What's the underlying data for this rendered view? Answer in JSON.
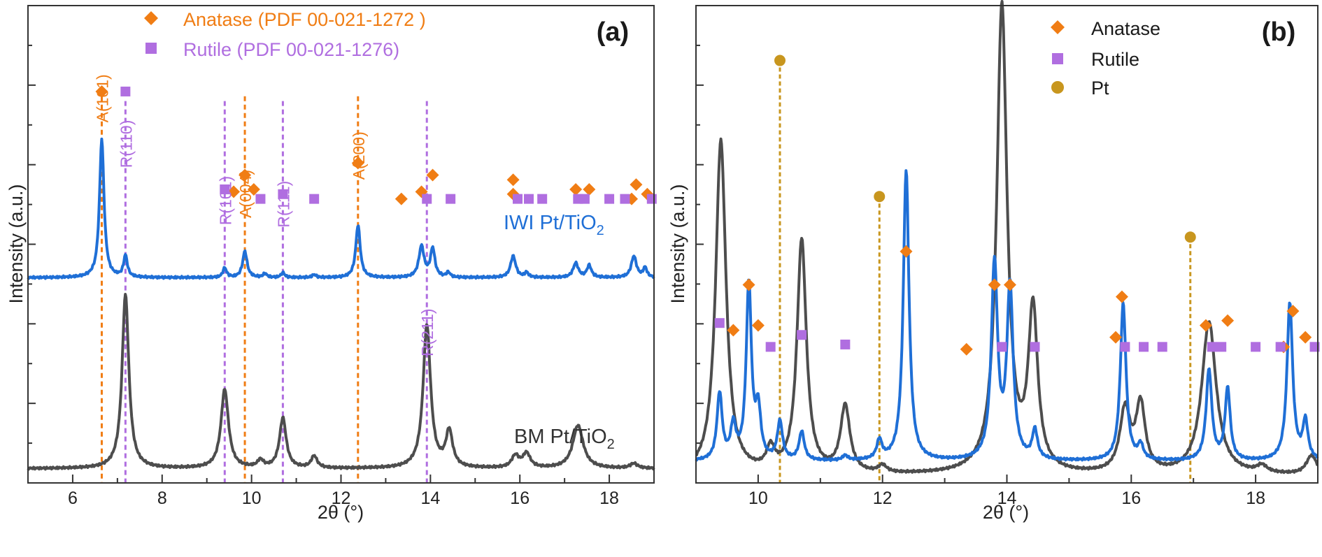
{
  "chart_data": [
    {
      "type": "line",
      "panel_label": "(a)",
      "xlabel": "2θ (°)",
      "ylabel": "Intensity (a.u.)",
      "xlim": [
        5,
        19
      ],
      "xticks": [
        6,
        8,
        10,
        12,
        14,
        16,
        18
      ],
      "legend": [
        {
          "name": "Anatase (PDF 00-021-1272 )",
          "marker": "diamond",
          "color": "#f07d14"
        },
        {
          "name": "Rutile (PDF 00-021-1276)",
          "marker": "square",
          "color": "#b06ee0"
        }
      ],
      "legend_position": "top-center",
      "series": [
        {
          "name": "IWI Pt/TiO2",
          "label_main": "IWI Pt/TiO",
          "label_sub": "2",
          "color": "#1f6fd6",
          "baseline": 0.57,
          "peaks": [
            [
              6.65,
              0.29,
              0.06
            ],
            [
              7.18,
              0.045,
              0.05
            ],
            [
              9.4,
              0.02,
              0.05
            ],
            [
              9.85,
              0.055,
              0.06
            ],
            [
              10.3,
              0.008,
              0.05
            ],
            [
              10.7,
              0.01,
              0.05
            ],
            [
              11.4,
              0.006,
              0.05
            ],
            [
              12.38,
              0.11,
              0.06
            ],
            [
              13.8,
              0.065,
              0.07
            ],
            [
              14.05,
              0.06,
              0.06
            ],
            [
              14.4,
              0.01,
              0.05
            ],
            [
              15.85,
              0.045,
              0.07
            ],
            [
              16.15,
              0.01,
              0.05
            ],
            [
              17.25,
              0.03,
              0.07
            ],
            [
              17.55,
              0.025,
              0.06
            ],
            [
              18.55,
              0.045,
              0.07
            ],
            [
              18.8,
              0.02,
              0.05
            ]
          ]
        },
        {
          "name": "BM Pt/TiO2",
          "label_main": "BM Pt/TiO",
          "label_sub": "2",
          "color": "#4d4d4d",
          "baseline": 0.97,
          "peaks": [
            [
              7.18,
              0.365,
              0.09
            ],
            [
              9.4,
              0.165,
              0.1
            ],
            [
              10.2,
              0.015,
              0.08
            ],
            [
              10.7,
              0.105,
              0.09
            ],
            [
              11.4,
              0.025,
              0.08
            ],
            [
              13.92,
              0.3,
              0.1
            ],
            [
              14.42,
              0.075,
              0.09
            ],
            [
              15.9,
              0.025,
              0.1
            ],
            [
              16.15,
              0.03,
              0.1
            ],
            [
              17.3,
              0.09,
              0.14
            ],
            [
              18.55,
              0.01,
              0.1
            ]
          ]
        }
      ],
      "reference_lines": [
        {
          "x": 6.65,
          "phase": "anatase",
          "label": "A(101)",
          "color": "#f07d14"
        },
        {
          "x": 7.18,
          "phase": "rutile",
          "label": "R(110)",
          "color": "#b06ee0"
        },
        {
          "x": 9.4,
          "phase": "rutile",
          "label": "R(101)",
          "color": "#b06ee0"
        },
        {
          "x": 9.85,
          "phase": "anatase",
          "label": "A(004)",
          "color": "#f07d14"
        },
        {
          "x": 10.7,
          "phase": "rutile",
          "label": "R(111)",
          "color": "#b06ee0"
        },
        {
          "x": 12.38,
          "phase": "anatase",
          "label": "A(200)",
          "color": "#f07d14"
        },
        {
          "x": 13.92,
          "phase": "rutile",
          "label": "R(211)",
          "color": "#b06ee0"
        }
      ],
      "anatase_markers": [
        [
          6.65,
          0.18
        ],
        [
          9.6,
          0.39
        ],
        [
          9.85,
          0.355
        ],
        [
          10.05,
          0.385
        ],
        [
          12.38,
          0.33
        ],
        [
          13.35,
          0.405
        ],
        [
          13.8,
          0.39
        ],
        [
          14.05,
          0.355
        ],
        [
          15.85,
          0.365
        ],
        [
          15.85,
          0.395
        ],
        [
          17.25,
          0.385
        ],
        [
          17.55,
          0.385
        ],
        [
          18.5,
          0.405
        ],
        [
          18.6,
          0.375
        ],
        [
          18.85,
          0.395
        ]
      ],
      "rutile_markers": [
        [
          7.18,
          0.18
        ],
        [
          9.4,
          0.385
        ],
        [
          10.2,
          0.405
        ],
        [
          10.7,
          0.395
        ],
        [
          11.4,
          0.405
        ],
        [
          13.92,
          0.405
        ],
        [
          14.45,
          0.405
        ],
        [
          15.95,
          0.405
        ],
        [
          16.2,
          0.405
        ],
        [
          16.5,
          0.405
        ],
        [
          17.3,
          0.405
        ],
        [
          17.45,
          0.405
        ],
        [
          18.0,
          0.405
        ],
        [
          18.35,
          0.405
        ],
        [
          18.95,
          0.405
        ]
      ]
    },
    {
      "type": "line",
      "panel_label": "(b)",
      "xlabel": "2θ (°)",
      "ylabel": "Intensity (a.u.)",
      "xlim": [
        9,
        19
      ],
      "xticks": [
        10,
        12,
        14,
        16,
        18
      ],
      "legend": [
        {
          "name": "Anatase",
          "marker": "diamond",
          "color": "#f07d14"
        },
        {
          "name": "Rutile",
          "marker": "square",
          "color": "#b06ee0"
        },
        {
          "name": "Pt",
          "marker": "circle",
          "color": "#c8961e"
        }
      ],
      "legend_position": "top-center",
      "series": [
        {
          "name": "BM Pt/TiO2",
          "color": "#4d4d4d",
          "baseline": 0.985,
          "peaks": [
            [
              9.4,
              0.7,
              0.1
            ],
            [
              10.2,
              0.045,
              0.08
            ],
            [
              10.7,
              0.49,
              0.09
            ],
            [
              11.4,
              0.14,
              0.09
            ],
            [
              12.0,
              0.015,
              0.08
            ],
            [
              13.92,
              0.98,
              0.1
            ],
            [
              14.42,
              0.335,
              0.09
            ],
            [
              15.9,
              0.13,
              0.1
            ],
            [
              16.15,
              0.14,
              0.09
            ],
            [
              17.25,
              0.32,
              0.14
            ],
            [
              18.1,
              0.015,
              0.1
            ],
            [
              18.9,
              0.04,
              0.1
            ]
          ]
        },
        {
          "name": "IWI Pt/TiO2",
          "color": "#1f6fd6",
          "baseline": 0.955,
          "peaks": [
            [
              9.38,
              0.14,
              0.05
            ],
            [
              9.6,
              0.07,
              0.05
            ],
            [
              9.85,
              0.37,
              0.05
            ],
            [
              10.0,
              0.1,
              0.05
            ],
            [
              10.35,
              0.08,
              0.05
            ],
            [
              10.7,
              0.06,
              0.05
            ],
            [
              11.4,
              0.01,
              0.05
            ],
            [
              11.95,
              0.04,
              0.05
            ],
            [
              12.38,
              0.61,
              0.055
            ],
            [
              13.8,
              0.41,
              0.06
            ],
            [
              14.05,
              0.36,
              0.06
            ],
            [
              14.45,
              0.06,
              0.05
            ],
            [
              15.87,
              0.33,
              0.055
            ],
            [
              16.15,
              0.03,
              0.05
            ],
            [
              17.25,
              0.19,
              0.055
            ],
            [
              17.55,
              0.15,
              0.05
            ],
            [
              18.55,
              0.33,
              0.055
            ],
            [
              18.8,
              0.08,
              0.05
            ]
          ]
        }
      ],
      "pt_lines": [
        10.35,
        11.95,
        16.95
      ],
      "pt_markers": [
        [
          10.35,
          0.115
        ],
        [
          11.95,
          0.4
        ],
        [
          16.95,
          0.485
        ]
      ],
      "anatase_markers": [
        [
          9.6,
          0.68
        ],
        [
          9.85,
          0.585
        ],
        [
          10.0,
          0.67
        ],
        [
          12.38,
          0.515
        ],
        [
          13.35,
          0.72
        ],
        [
          13.8,
          0.585
        ],
        [
          14.05,
          0.585
        ],
        [
          15.75,
          0.695
        ],
        [
          15.85,
          0.61
        ],
        [
          17.2,
          0.67
        ],
        [
          17.55,
          0.66
        ],
        [
          18.45,
          0.715
        ],
        [
          18.6,
          0.64
        ],
        [
          18.8,
          0.695
        ]
      ],
      "rutile_markers": [
        [
          9.38,
          0.665
        ],
        [
          10.2,
          0.715
        ],
        [
          10.7,
          0.69
        ],
        [
          11.4,
          0.71
        ],
        [
          13.92,
          0.715
        ],
        [
          14.45,
          0.715
        ],
        [
          15.9,
          0.715
        ],
        [
          16.2,
          0.715
        ],
        [
          16.5,
          0.715
        ],
        [
          17.3,
          0.715
        ],
        [
          17.45,
          0.715
        ],
        [
          18.0,
          0.715
        ],
        [
          18.4,
          0.715
        ],
        [
          18.95,
          0.715
        ]
      ]
    }
  ]
}
